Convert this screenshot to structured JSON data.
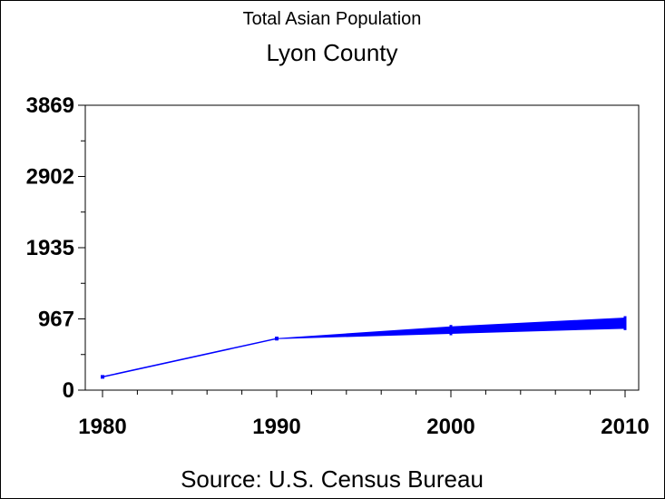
{
  "chart_data": {
    "type": "line",
    "title": "Total Asian Population",
    "subtitle": "Lyon County",
    "source": "Source: U.S. Census Bureau",
    "xlabel": "",
    "ylabel": "",
    "x_ticks": [
      "1980",
      "1990",
      "2000",
      "2010"
    ],
    "y_ticks": [
      "0",
      "967",
      "1935",
      "2902",
      "3869"
    ],
    "xlim": [
      1980,
      2010
    ],
    "ylim": [
      0,
      3869
    ],
    "grid": false,
    "series": [
      {
        "color": "#0000ff",
        "points": [
          {
            "x": 1980,
            "y": 180
          },
          {
            "x": 1990,
            "y": 700
          }
        ]
      },
      {
        "color": "#0000ff",
        "band": true,
        "x": [
          1990,
          2000,
          2010
        ],
        "low": [
          700,
          770,
          840
        ],
        "high": [
          700,
          860,
          980
        ]
      }
    ]
  },
  "colors": {
    "series": "#0000ff",
    "axis": "#000000",
    "background": "#ffffff"
  }
}
